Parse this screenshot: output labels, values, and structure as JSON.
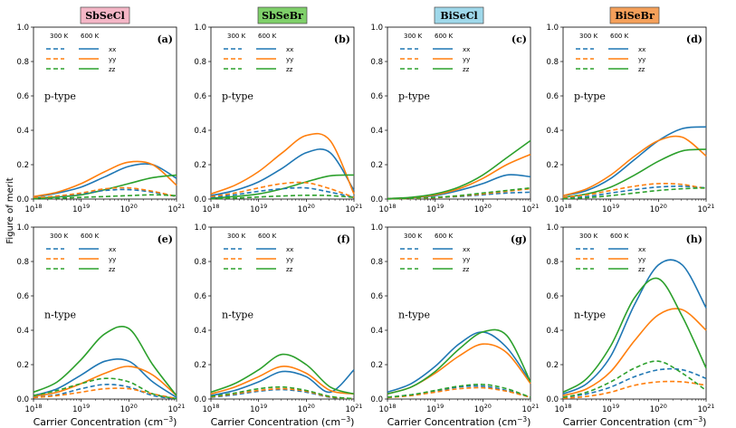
{
  "figure": {
    "ylabel": "Figure of merit",
    "xlabel_main": "Carrier Concentration (cm",
    "xlabel_sup": "−3",
    "xlabel_close": ")",
    "legend_temp_low": "300 K",
    "legend_temp_high": "600 K",
    "legend_components": [
      "xx",
      "yy",
      "zz"
    ],
    "y_ticks": [
      "0.0",
      "0.2",
      "0.4",
      "0.6",
      "0.8",
      "1.0"
    ],
    "x_tick_base": "10",
    "x_tick_exps": [
      "18",
      "19",
      "20",
      "21"
    ],
    "colors": {
      "xx": "#1f77b4",
      "yy": "#ff7f0e",
      "zz": "#2ca02c"
    },
    "materials": [
      {
        "name": "SbSeCl",
        "badge_color": "#f4b6c6"
      },
      {
        "name": "SbSeBr",
        "badge_color": "#7fd06a"
      },
      {
        "name": "BiSeCl",
        "badge_color": "#9fd8ea"
      },
      {
        "name": "BiSeBr",
        "badge_color": "#f5a05a"
      }
    ]
  },
  "chart_data": [
    {
      "type": "line",
      "material": "SbSeCl",
      "carrier": "p-type",
      "panel_label": "(a)",
      "x_scale": "log10",
      "xlim": [
        18,
        21
      ],
      "ylim": [
        0,
        1.0
      ],
      "x": [
        18,
        18.5,
        19,
        19.5,
        20,
        20.5,
        21
      ],
      "series": [
        {
          "name": "xx 600 K",
          "values": [
            0.012,
            0.035,
            0.07,
            0.13,
            0.19,
            0.2,
            0.12
          ]
        },
        {
          "name": "yy 600 K",
          "values": [
            0.015,
            0.04,
            0.09,
            0.16,
            0.215,
            0.2,
            0.08
          ]
        },
        {
          "name": "zz 600 K",
          "values": [
            0.005,
            0.012,
            0.025,
            0.055,
            0.09,
            0.125,
            0.14
          ]
        },
        {
          "name": "xx 300 K",
          "values": [
            0.005,
            0.015,
            0.03,
            0.05,
            0.055,
            0.04,
            0.015
          ]
        },
        {
          "name": "yy 300 K",
          "values": [
            0.006,
            0.018,
            0.035,
            0.06,
            0.065,
            0.045,
            0.015
          ]
        },
        {
          "name": "zz 300 K",
          "values": [
            0.002,
            0.005,
            0.01,
            0.015,
            0.02,
            0.025,
            0.02
          ]
        }
      ]
    },
    {
      "type": "line",
      "material": "SbSeBr",
      "carrier": "p-type",
      "panel_label": "(b)",
      "x_scale": "log10",
      "xlim": [
        18,
        21
      ],
      "ylim": [
        0,
        1.0
      ],
      "x": [
        18,
        18.5,
        19,
        19.5,
        20,
        20.5,
        21
      ],
      "series": [
        {
          "name": "xx 600 K",
          "values": [
            0.02,
            0.05,
            0.1,
            0.18,
            0.27,
            0.27,
            0.05
          ]
        },
        {
          "name": "yy 600 K",
          "values": [
            0.03,
            0.08,
            0.16,
            0.27,
            0.37,
            0.34,
            0.03
          ]
        },
        {
          "name": "zz 600 K",
          "values": [
            0.005,
            0.015,
            0.03,
            0.06,
            0.1,
            0.135,
            0.14
          ]
        },
        {
          "name": "xx 300 K",
          "values": [
            0.01,
            0.025,
            0.045,
            0.06,
            0.065,
            0.04,
            0.01
          ]
        },
        {
          "name": "yy 300 K",
          "values": [
            0.015,
            0.035,
            0.065,
            0.09,
            0.095,
            0.06,
            0.01
          ]
        },
        {
          "name": "zz 300 K",
          "values": [
            0.002,
            0.006,
            0.012,
            0.018,
            0.022,
            0.02,
            0.01
          ]
        }
      ]
    },
    {
      "type": "line",
      "material": "BiSeCl",
      "carrier": "p-type",
      "panel_label": "(c)",
      "x_scale": "log10",
      "xlim": [
        18,
        21
      ],
      "ylim": [
        0,
        1.0
      ],
      "x": [
        18,
        18.5,
        19,
        19.5,
        20,
        20.5,
        21
      ],
      "series": [
        {
          "name": "xx 600 K",
          "values": [
            0.002,
            0.008,
            0.02,
            0.05,
            0.09,
            0.14,
            0.13
          ]
        },
        {
          "name": "yy 600 K",
          "values": [
            0.002,
            0.008,
            0.025,
            0.06,
            0.12,
            0.2,
            0.26
          ]
        },
        {
          "name": "zz 600 K",
          "values": [
            0.003,
            0.01,
            0.03,
            0.07,
            0.14,
            0.24,
            0.34
          ]
        },
        {
          "name": "xx 300 K",
          "values": [
            0.001,
            0.003,
            0.008,
            0.015,
            0.025,
            0.035,
            0.04
          ]
        },
        {
          "name": "yy 300 K",
          "values": [
            0.001,
            0.003,
            0.008,
            0.018,
            0.03,
            0.045,
            0.06
          ]
        },
        {
          "name": "zz 300 K",
          "values": [
            0.001,
            0.004,
            0.01,
            0.02,
            0.035,
            0.05,
            0.065
          ]
        }
      ]
    },
    {
      "type": "line",
      "material": "BiSeBr",
      "carrier": "p-type",
      "panel_label": "(d)",
      "x_scale": "log10",
      "xlim": [
        18,
        21
      ],
      "ylim": [
        0,
        1.0
      ],
      "x": [
        18,
        18.5,
        19,
        19.5,
        20,
        20.5,
        21
      ],
      "series": [
        {
          "name": "xx 600 K",
          "values": [
            0.02,
            0.05,
            0.12,
            0.23,
            0.34,
            0.41,
            0.42
          ]
        },
        {
          "name": "yy 600 K",
          "values": [
            0.02,
            0.06,
            0.14,
            0.25,
            0.34,
            0.36,
            0.25
          ]
        },
        {
          "name": "zz 600 K",
          "values": [
            0.01,
            0.03,
            0.07,
            0.14,
            0.22,
            0.28,
            0.29
          ]
        },
        {
          "name": "xx 300 K",
          "values": [
            0.005,
            0.015,
            0.035,
            0.055,
            0.07,
            0.075,
            0.065
          ]
        },
        {
          "name": "yy 300 K",
          "values": [
            0.01,
            0.025,
            0.05,
            0.075,
            0.09,
            0.085,
            0.06
          ]
        },
        {
          "name": "zz 300 K",
          "values": [
            0.002,
            0.008,
            0.02,
            0.035,
            0.05,
            0.06,
            0.065
          ]
        }
      ]
    },
    {
      "type": "line",
      "material": "SbSeCl",
      "carrier": "n-type",
      "panel_label": "(e)",
      "x_scale": "log10",
      "xlim": [
        18,
        21
      ],
      "ylim": [
        0,
        1.0
      ],
      "x": [
        18,
        18.5,
        19,
        19.5,
        20,
        20.5,
        21
      ],
      "series": [
        {
          "name": "xx 600 K",
          "values": [
            0.02,
            0.06,
            0.14,
            0.22,
            0.22,
            0.1,
            0.01
          ]
        },
        {
          "name": "yy 600 K",
          "values": [
            0.015,
            0.04,
            0.09,
            0.15,
            0.19,
            0.14,
            0.02
          ]
        },
        {
          "name": "zz 600 K",
          "values": [
            0.04,
            0.1,
            0.23,
            0.38,
            0.41,
            0.2,
            0.02
          ]
        },
        {
          "name": "xx 300 K",
          "values": [
            0.01,
            0.025,
            0.06,
            0.085,
            0.07,
            0.02,
            0.002
          ]
        },
        {
          "name": "yy 300 K",
          "values": [
            0.008,
            0.02,
            0.04,
            0.06,
            0.06,
            0.03,
            0.003
          ]
        },
        {
          "name": "zz 300 K",
          "values": [
            0.02,
            0.05,
            0.09,
            0.12,
            0.1,
            0.03,
            0.002
          ]
        }
      ]
    },
    {
      "type": "line",
      "material": "SbSeBr",
      "carrier": "n-type",
      "panel_label": "(f)",
      "x_scale": "log10",
      "xlim": [
        18,
        21
      ],
      "ylim": [
        0,
        1.0
      ],
      "x": [
        18,
        18.5,
        19,
        19.5,
        20,
        20.5,
        21
      ],
      "series": [
        {
          "name": "xx 600 K",
          "values": [
            0.02,
            0.05,
            0.1,
            0.16,
            0.13,
            0.04,
            0.17
          ]
        },
        {
          "name": "yy 600 K",
          "values": [
            0.03,
            0.07,
            0.13,
            0.19,
            0.15,
            0.05,
            0.03
          ]
        },
        {
          "name": "zz 600 K",
          "values": [
            0.04,
            0.09,
            0.17,
            0.26,
            0.2,
            0.07,
            0.03
          ]
        },
        {
          "name": "xx 300 K",
          "values": [
            0.01,
            0.025,
            0.045,
            0.055,
            0.04,
            0.01,
            0.002
          ]
        },
        {
          "name": "yy 300 K",
          "values": [
            0.012,
            0.03,
            0.05,
            0.06,
            0.045,
            0.012,
            0.002
          ]
        },
        {
          "name": "zz 300 K",
          "values": [
            0.015,
            0.035,
            0.06,
            0.07,
            0.05,
            0.015,
            0.002
          ]
        }
      ]
    },
    {
      "type": "line",
      "material": "BiSeCl",
      "carrier": "n-type",
      "panel_label": "(g)",
      "x_scale": "log10",
      "xlim": [
        18,
        21
      ],
      "ylim": [
        0,
        1.0
      ],
      "x": [
        18,
        18.5,
        19,
        19.5,
        20,
        20.5,
        21
      ],
      "series": [
        {
          "name": "xx 600 K",
          "values": [
            0.04,
            0.09,
            0.19,
            0.32,
            0.39,
            0.3,
            0.1
          ]
        },
        {
          "name": "yy 600 K",
          "values": [
            0.03,
            0.07,
            0.15,
            0.25,
            0.32,
            0.27,
            0.09
          ]
        },
        {
          "name": "zz 600 K",
          "values": [
            0.03,
            0.07,
            0.16,
            0.29,
            0.39,
            0.37,
            0.1
          ]
        },
        {
          "name": "xx 300 K",
          "values": [
            0.01,
            0.025,
            0.045,
            0.07,
            0.075,
            0.05,
            0.01
          ]
        },
        {
          "name": "yy 300 K",
          "values": [
            0.008,
            0.02,
            0.04,
            0.06,
            0.065,
            0.045,
            0.01
          ]
        },
        {
          "name": "zz 300 K",
          "values": [
            0.01,
            0.025,
            0.05,
            0.075,
            0.085,
            0.06,
            0.01
          ]
        }
      ]
    },
    {
      "type": "line",
      "material": "BiSeBr",
      "carrier": "n-type",
      "panel_label": "(h)",
      "x_scale": "log10",
      "xlim": [
        18,
        21
      ],
      "ylim": [
        0,
        1.0
      ],
      "x": [
        18,
        18.5,
        19,
        19.5,
        20,
        20.5,
        21
      ],
      "series": [
        {
          "name": "xx 600 K",
          "values": [
            0.03,
            0.09,
            0.25,
            0.55,
            0.78,
            0.78,
            0.53
          ]
        },
        {
          "name": "yy 600 K",
          "values": [
            0.02,
            0.06,
            0.16,
            0.34,
            0.49,
            0.52,
            0.4
          ]
        },
        {
          "name": "zz 600 K",
          "values": [
            0.04,
            0.12,
            0.31,
            0.59,
            0.7,
            0.48,
            0.18
          ]
        },
        {
          "name": "xx 300 K",
          "values": [
            0.01,
            0.03,
            0.07,
            0.13,
            0.17,
            0.17,
            0.12
          ]
        },
        {
          "name": "yy 300 K",
          "values": [
            0.005,
            0.015,
            0.04,
            0.08,
            0.1,
            0.1,
            0.08
          ]
        },
        {
          "name": "zz 300 K",
          "values": [
            0.01,
            0.04,
            0.1,
            0.18,
            0.22,
            0.15,
            0.05
          ]
        }
      ]
    }
  ]
}
